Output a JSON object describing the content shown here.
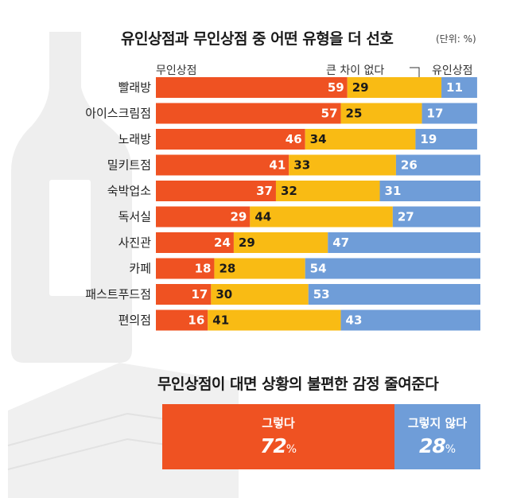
{
  "chart_data": {
    "type": "bar",
    "orientation": "horizontal",
    "stacked": true,
    "title": "유인상점과 무인상점 중 어떤 유형을 더 선호",
    "unit": "(단위: %)",
    "categories": [
      "빨래방",
      "아이스크림점",
      "노래방",
      "밀키트점",
      "숙박업소",
      "독서실",
      "사진관",
      "카페",
      "패스트푸드점",
      "편의점"
    ],
    "series": [
      {
        "name": "무인상점",
        "color": "#ef5222",
        "values": [
          59,
          57,
          46,
          41,
          37,
          29,
          24,
          18,
          17,
          16
        ]
      },
      {
        "name": "큰 차이 없다",
        "color": "#f9bb14",
        "values": [
          29,
          25,
          34,
          33,
          32,
          44,
          29,
          28,
          30,
          41
        ]
      },
      {
        "name": "유인상점",
        "color": "#6f9dd8",
        "values": [
          11,
          17,
          19,
          26,
          31,
          27,
          47,
          54,
          53,
          43
        ]
      }
    ],
    "xlim": [
      0,
      100
    ]
  },
  "legend": {
    "unmanned": "무인상점",
    "no_diff": "큰 차이 없다",
    "manned": "유인상점"
  },
  "survey": {
    "title": "무인상점이 대면 상황의 불편한 감정 줄여준다",
    "yes_label": "그렇다",
    "yes_value": "72",
    "no_label": "그렇지 않다",
    "no_value": "28",
    "pct": "%"
  },
  "colors": {
    "unmanned": "#ef5222",
    "no_diff": "#f9bb14",
    "manned": "#6f9dd8"
  }
}
